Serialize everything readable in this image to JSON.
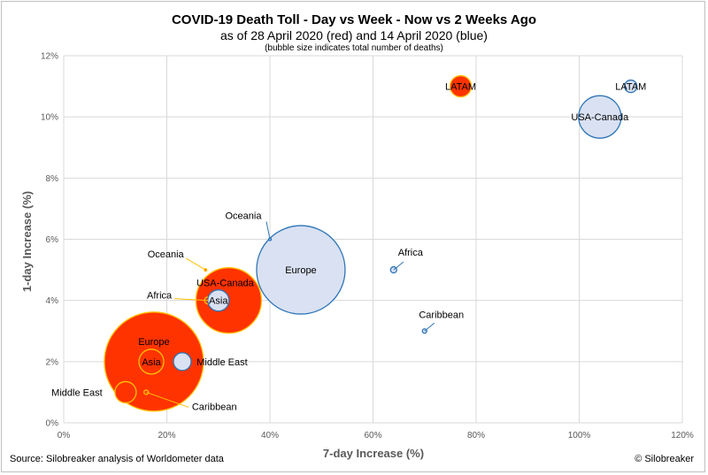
{
  "header": {
    "title": "COVID-19 Death Toll - Day vs Week - Now vs 2 Weeks Ago",
    "subtitle": "as of 28 April 2020 (red) and 14 April 2020 (blue)",
    "note": "(bubble size indicates total number of deaths)"
  },
  "footer": {
    "source": "Source: Silobreaker analysis of Worldometer data",
    "copyright": "© Silobreaker"
  },
  "colors": {
    "red_fill": "#ff3300",
    "red_stroke": "#ffc000",
    "blue_fill": "#d9e1f2",
    "blue_stroke": "#2e75b6",
    "grid": "#d9d9d9"
  },
  "chart_data": {
    "type": "scatter",
    "title": "COVID-19 Death Toll - Day vs Week - Now vs 2 Weeks Ago",
    "xlabel": "7-day Increase (%)",
    "ylabel": "1-day Increase (%)",
    "xlim": [
      0,
      120
    ],
    "ylim": [
      0,
      12
    ],
    "xticks": [
      "0%",
      "20%",
      "40%",
      "60%",
      "80%",
      "100%",
      "120%"
    ],
    "yticks": [
      "0%",
      "2%",
      "4%",
      "6%",
      "8%",
      "10%",
      "12%"
    ],
    "grid": true,
    "series": [
      {
        "name": "28 April 2020",
        "color": "#ff3300",
        "points": [
          {
            "label": "Europe",
            "x": 17.5,
            "y": 2.0
          },
          {
            "label": "USA-Canada",
            "x": 32,
            "y": 4.0
          },
          {
            "label": "Asia",
            "x": 17,
            "y": 2.0
          },
          {
            "label": "Middle East",
            "x": 12,
            "y": 1.0
          },
          {
            "label": "LATAM",
            "x": 77,
            "y": 11.0
          },
          {
            "label": "Africa",
            "x": 28,
            "y": 4.0
          },
          {
            "label": "Caribbean",
            "x": 16,
            "y": 1.0
          },
          {
            "label": "Oceania",
            "x": 27.5,
            "y": 5.0
          }
        ]
      },
      {
        "name": "14 April 2020",
        "color": "#2e75b6",
        "points": [
          {
            "label": "Europe",
            "x": 46,
            "y": 5.0
          },
          {
            "label": "USA-Canada",
            "x": 104,
            "y": 10.0
          },
          {
            "label": "Asia",
            "x": 30,
            "y": 4.0
          },
          {
            "label": "Middle East",
            "x": 23,
            "y": 2.0
          },
          {
            "label": "LATAM",
            "x": 110,
            "y": 11.0
          },
          {
            "label": "Africa",
            "x": 64,
            "y": 5.0
          },
          {
            "label": "Caribbean",
            "x": 70,
            "y": 3.0
          },
          {
            "label": "Oceania",
            "x": 40,
            "y": 6.0
          }
        ]
      }
    ]
  }
}
